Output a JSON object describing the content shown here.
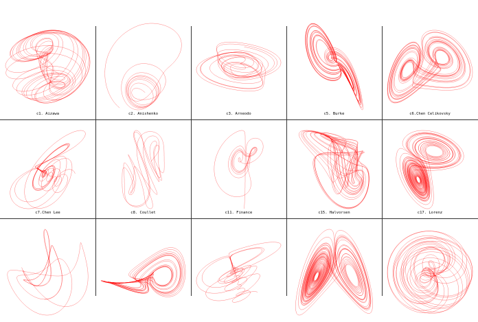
{
  "figure": {
    "line_color": "#ff0000",
    "background": "#ffffff",
    "panels": [
      {
        "label": "c1. Aizawa",
        "kind": "aizawa"
      },
      {
        "label": "c2. Anishenko",
        "kind": "anishenko"
      },
      {
        "label": "c3. Arneodo",
        "kind": "arneodo"
      },
      {
        "label": "c5. Burke",
        "kind": "burke"
      },
      {
        "label": "c6.Chen Celikovsky",
        "kind": "chen_celikovsky"
      },
      {
        "label": "c7.Chen Lee",
        "kind": "chen_lee"
      },
      {
        "label": "c8. Coullet",
        "kind": "coullet"
      },
      {
        "label": "c11. Finance",
        "kind": "finance"
      },
      {
        "label": "c15. Halvorsen",
        "kind": "halvorsen"
      },
      {
        "label": "c17. Lorenz",
        "kind": "lorenz"
      },
      {
        "label": "",
        "kind": "ring"
      },
      {
        "label": "",
        "kind": "flat_wing"
      },
      {
        "label": "",
        "kind": "spiral_sheet"
      },
      {
        "label": "",
        "kind": "double_scroll"
      },
      {
        "label": "",
        "kind": "funnel"
      }
    ]
  }
}
